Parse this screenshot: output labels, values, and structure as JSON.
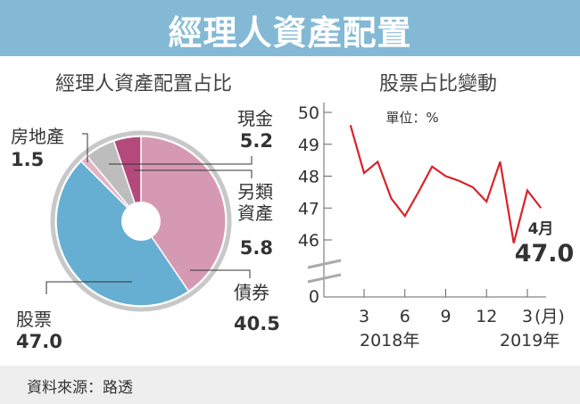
{
  "header": {
    "title": "經理人資產配置"
  },
  "footer": {
    "source": "資料來源：路透"
  },
  "chart_data": [
    {
      "type": "pie",
      "title": "經理人資產配置占比",
      "donut": true,
      "slices": [
        {
          "label_lines": [
            "債券"
          ],
          "value": 40.5,
          "value_label": "40.5",
          "color": "#d699b3"
        },
        {
          "label_lines": [
            "股票"
          ],
          "value": 47.0,
          "value_label": "47.0",
          "color": "#66afd3"
        },
        {
          "label_lines": [
            "房地產"
          ],
          "value": 1.5,
          "value_label": "1.5",
          "color": "#e3b3c6"
        },
        {
          "label_lines": [
            "另類",
            "資產"
          ],
          "value": 5.8,
          "value_label": "5.8",
          "color": "#bdbdbd"
        },
        {
          "label_lines": [
            "現金"
          ],
          "value": 5.2,
          "value_label": "5.2",
          "color": "#b44a7c"
        }
      ]
    },
    {
      "type": "line",
      "title": "股票占比變動",
      "unit_note": "單位：%",
      "ylim": [
        46,
        50
      ],
      "y_ticks": [
        "50",
        "49",
        "48",
        "47",
        "46",
        "0"
      ],
      "axis_break": true,
      "x_ticks": [
        "3",
        "6",
        "9",
        "12",
        "3"
      ],
      "x_unit": "(月)",
      "year_labels": [
        "2018年",
        "2019年"
      ],
      "color": "#d8232a",
      "x": [
        "2018-02",
        "2018-03",
        "2018-04",
        "2018-05",
        "2018-06",
        "2018-07",
        "2018-08",
        "2018-09",
        "2018-10",
        "2018-11",
        "2018-12",
        "2019-01",
        "2019-02",
        "2019-03",
        "2019-04"
      ],
      "values": [
        49.6,
        48.1,
        48.45,
        47.3,
        46.75,
        47.5,
        48.3,
        48.0,
        47.85,
        47.65,
        47.2,
        48.45,
        45.9,
        47.55,
        47.0
      ],
      "annotation": {
        "month": "4月",
        "value": "47.0"
      }
    }
  ]
}
